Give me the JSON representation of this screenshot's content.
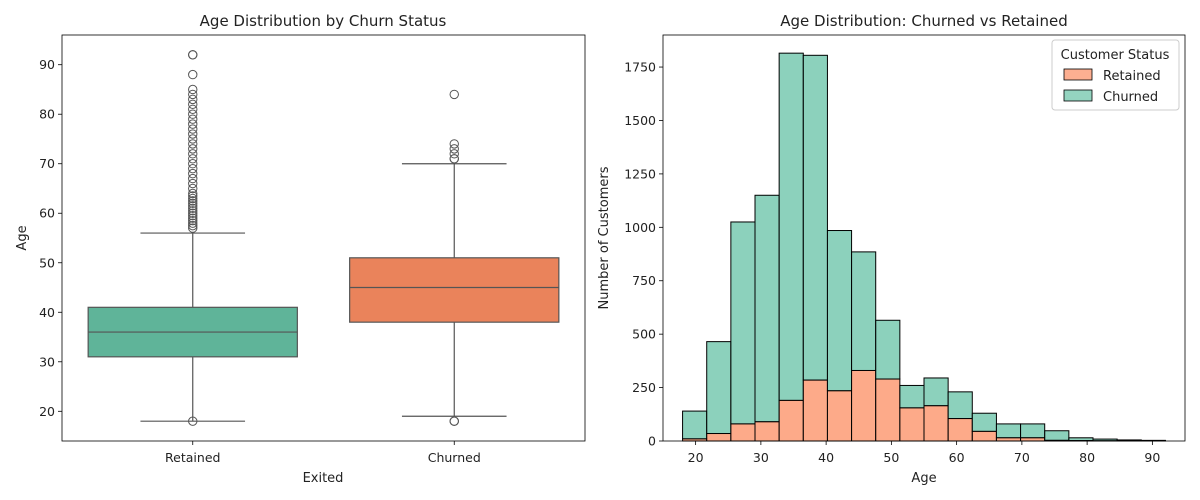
{
  "chart_data": [
    {
      "type": "box",
      "title": "Age Distribution by Churn Status",
      "xlabel": "Exited",
      "ylabel": "Age",
      "ylim": [
        14,
        96
      ],
      "yticks": [
        20,
        30,
        40,
        50,
        60,
        70,
        80,
        90
      ],
      "categories": [
        "Retained",
        "Churned"
      ],
      "colors": [
        "#66c2a5",
        "#fc8d62"
      ],
      "boxes": [
        {
          "name": "Retained",
          "whisker_low": 18,
          "q1": 31,
          "median": 36,
          "q3": 41,
          "whisker_high": 56,
          "outliers": [
            18,
            57,
            57.5,
            58,
            58.5,
            59,
            59.5,
            60,
            60.5,
            61,
            61.5,
            62,
            62.5,
            63,
            63.5,
            64,
            65,
            66,
            67,
            68,
            69,
            70,
            71,
            72,
            73,
            74,
            75,
            76,
            77,
            78,
            79,
            80,
            81,
            82,
            83,
            84,
            85,
            88,
            92,
            92
          ]
        },
        {
          "name": "Churned",
          "whisker_low": 19,
          "q1": 38,
          "median": 45,
          "q3": 51,
          "whisker_high": 70,
          "outliers": [
            18,
            18,
            71,
            71,
            72,
            73,
            74,
            84
          ]
        }
      ]
    },
    {
      "type": "histogram",
      "stacked": true,
      "title": "Age Distribution: Churned vs Retained",
      "xlabel": "Age",
      "ylabel": "Number of Customers",
      "xlim": [
        15,
        95
      ],
      "ylim": [
        0,
        1900
      ],
      "xticks": [
        20,
        30,
        40,
        50,
        60,
        70,
        80,
        90
      ],
      "yticks": [
        0,
        250,
        500,
        750,
        1000,
        1250,
        1500,
        1750
      ],
      "bin_edges": [
        18,
        21.7,
        25.4,
        29.1,
        32.8,
        36.5,
        40.2,
        43.9,
        47.6,
        51.3,
        55.0,
        58.7,
        62.4,
        66.1,
        69.8,
        73.5,
        77.2,
        80.9,
        84.6,
        88.3,
        92
      ],
      "series": [
        {
          "name": "Retained",
          "color": "#fc8d62",
          "values": [
            10,
            35,
            80,
            90,
            190,
            285,
            235,
            330,
            290,
            155,
            165,
            105,
            45,
            15,
            15,
            3,
            2,
            1,
            1,
            1
          ]
        },
        {
          "name": "Churned",
          "color": "#66c2a5",
          "values": [
            130,
            430,
            945,
            1060,
            1625,
            1520,
            750,
            555,
            275,
            105,
            130,
            125,
            85,
            65,
            65,
            45,
            13,
            8,
            4,
            2
          ]
        }
      ],
      "legend": {
        "title": "Customer Status",
        "placement": "top-right"
      }
    }
  ]
}
